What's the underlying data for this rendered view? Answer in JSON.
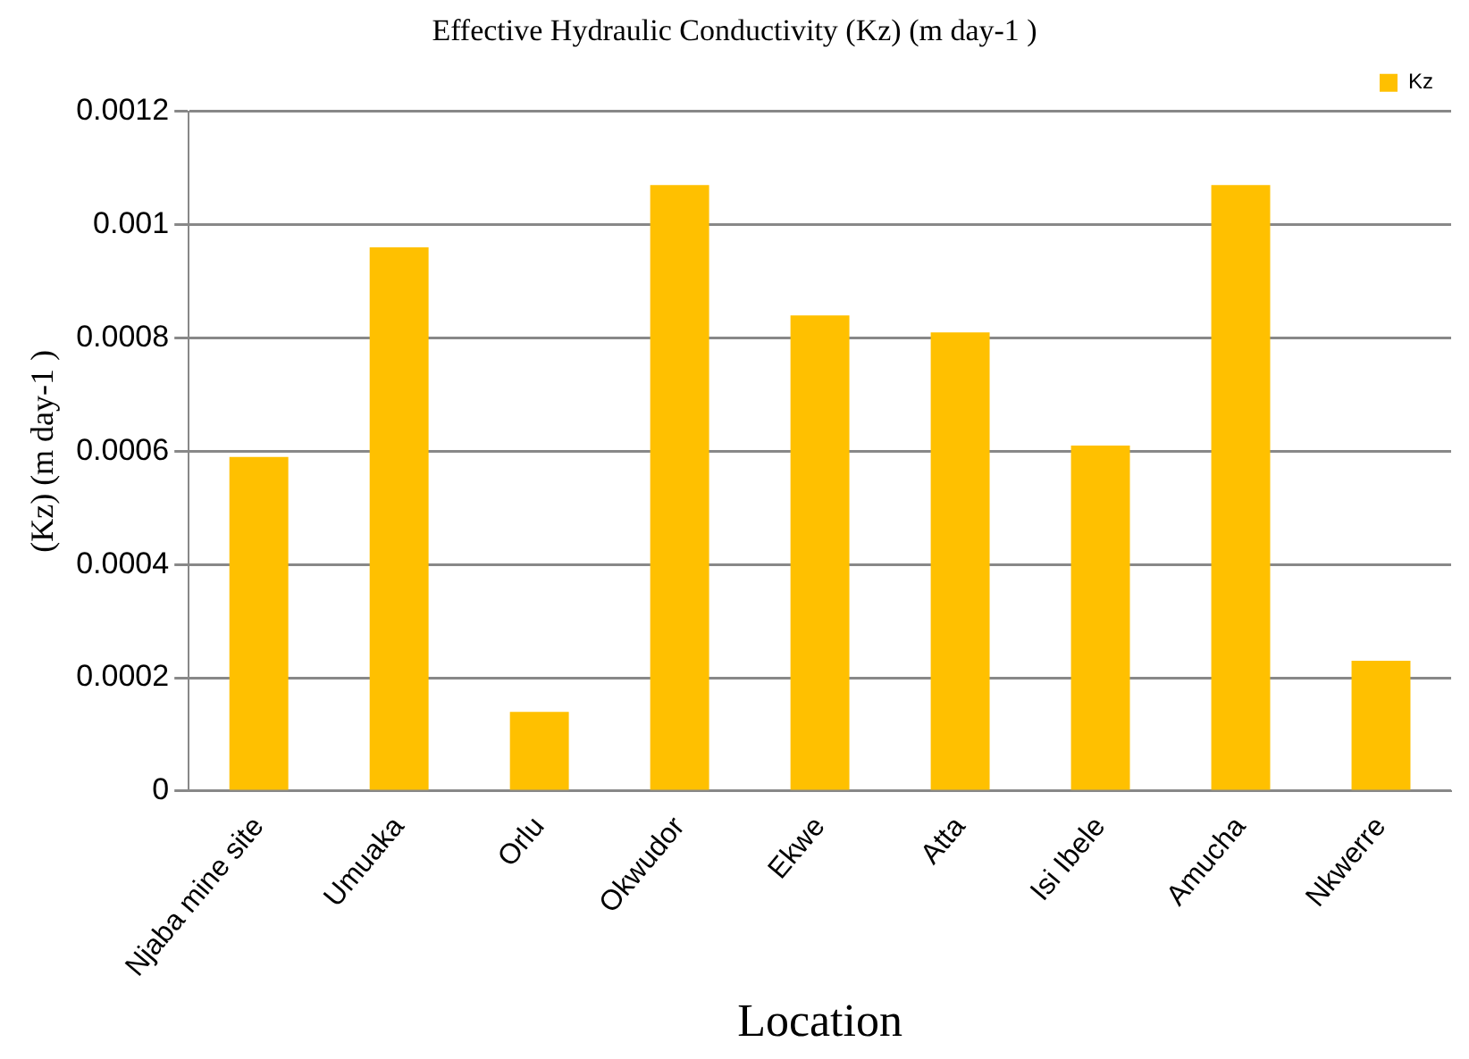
{
  "chart_data": {
    "type": "bar",
    "title": "Effective Hydraulic Conductivity (Kz) (m day-1 )",
    "xlabel": "Location",
    "ylabel": "(Kz) (m day-1 )",
    "categories": [
      "Njaba mine site",
      "Umuaka",
      "Orlu",
      "Okwudor",
      "Ekwe",
      "Atta",
      "Isi Ibele",
      "Amucha",
      "Nkwerre"
    ],
    "series": [
      {
        "name": "Kz",
        "color": "#ffc000",
        "values": [
          0.00059,
          0.00096,
          0.00014,
          0.00107,
          0.00084,
          0.00081,
          0.00061,
          0.00107,
          0.00023
        ]
      }
    ],
    "ylim": [
      0,
      0.0012
    ],
    "yticks": [
      0,
      0.0002,
      0.0004,
      0.0006,
      0.0008,
      0.001,
      0.0012
    ],
    "grid": "y",
    "legend": "top right"
  }
}
